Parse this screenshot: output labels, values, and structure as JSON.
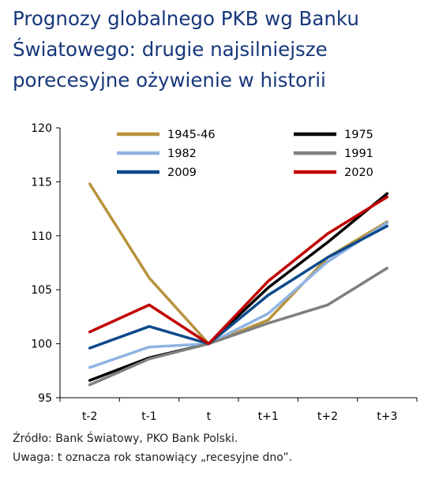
{
  "title_lines": [
    "Prognozy globalnego PKB wg Banku",
    "Światowego: drugie najsilniejsze",
    "porecesyjne ożywienie w historii"
  ],
  "notes": {
    "source": "Źródło: Bank Światowy, PKO Bank Polski.",
    "remark": "Uwaga: t oznacza rok stanowiący „recesyjne dno”."
  },
  "chart_data": {
    "type": "line",
    "categories": [
      "t-2",
      "t-1",
      "t",
      "t+1",
      "t+2",
      "t+3"
    ],
    "ylim": [
      95,
      120
    ],
    "yticks": [
      95,
      100,
      105,
      110,
      115,
      120
    ],
    "grid": false,
    "legend_position": "top",
    "series": [
      {
        "name": "1945-46",
        "color": "#b8923b",
        "values": [
          114.8,
          106.1,
          100.0,
          102.2,
          108.0,
          111.3
        ]
      },
      {
        "name": "1975",
        "color": "#000000",
        "values": [
          96.6,
          98.7,
          100.0,
          105.2,
          109.4,
          113.9
        ]
      },
      {
        "name": "1982",
        "color": "#8fb4e3",
        "values": [
          97.8,
          99.7,
          100.0,
          102.8,
          107.6,
          111.2
        ]
      },
      {
        "name": "1991",
        "color": "#7f7f7f",
        "values": [
          96.2,
          98.6,
          100.0,
          101.9,
          103.6,
          107.0
        ]
      },
      {
        "name": "2009",
        "color": "#0d4a8b",
        "values": [
          99.6,
          101.6,
          100.0,
          104.5,
          108.0,
          110.9
        ]
      },
      {
        "name": "2020",
        "color": "#c00000",
        "values": [
          101.1,
          103.6,
          100.0,
          105.8,
          110.2,
          113.6
        ]
      }
    ]
  }
}
